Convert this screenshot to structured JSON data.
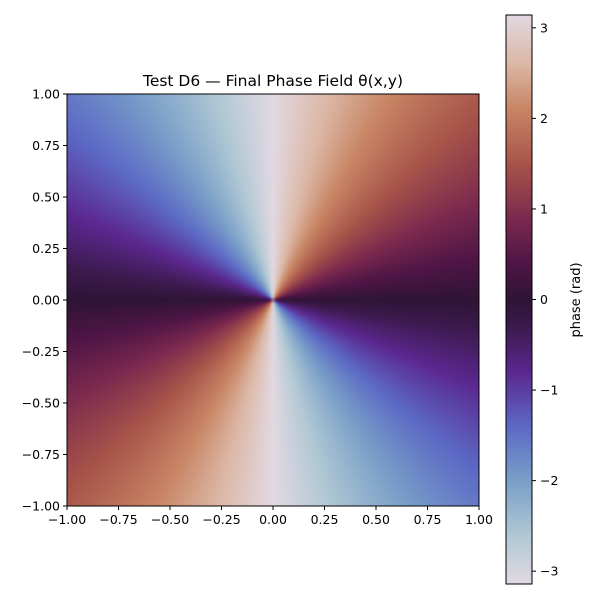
{
  "chart_data": {
    "type": "heatmap",
    "title": "Test D6 — Final Phase Field θ(x,y)",
    "xlabel": "",
    "ylabel": "",
    "xlim": [
      -1.0,
      1.0
    ],
    "ylim": [
      -1.0,
      1.0
    ],
    "x_ticks": [
      -1.0,
      -0.75,
      -0.5,
      -0.25,
      0.0,
      0.25,
      0.5,
      0.75,
      1.0
    ],
    "y_ticks": [
      -1.0,
      -0.75,
      -0.5,
      -0.25,
      0.0,
      0.25,
      0.5,
      0.75,
      1.0
    ],
    "x_tick_labels": [
      "−1.00",
      "−0.75",
      "−0.50",
      "−0.25",
      "0.00",
      "0.25",
      "0.50",
      "0.75",
      "1.00"
    ],
    "y_tick_labels": [
      "−1.00",
      "−0.75",
      "−0.50",
      "−0.25",
      "0.00",
      "0.25",
      "0.50",
      "0.75",
      "1.00"
    ],
    "field": {
      "description": "phase field of a charge-2 vortex at the origin",
      "expression": "theta = wrap(2 * atan2(y, x))",
      "vortex_center": [
        0.0,
        0.0
      ],
      "winding_number": 2,
      "range": [
        -3.14159,
        3.14159
      ]
    },
    "colorbar": {
      "label": "phase (rad)",
      "range": [
        -3.14159,
        3.14159
      ],
      "ticks": [
        -3,
        -2,
        -1,
        0,
        1,
        2,
        3
      ],
      "tick_labels": [
        "−3",
        "−2",
        "−1",
        "0",
        "1",
        "2",
        "3"
      ],
      "colormap": "twilight_shifted",
      "colormap_stops": [
        {
          "value": -3.14159,
          "color": "#e2d9e2"
        },
        {
          "value": -2.6,
          "color": "#b0c8d4"
        },
        {
          "value": -2.0,
          "color": "#7a9fc8"
        },
        {
          "value": -1.4,
          "color": "#5c69c5"
        },
        {
          "value": -0.8,
          "color": "#5b2890"
        },
        {
          "value": -0.3,
          "color": "#3d1a4e"
        },
        {
          "value": 0.0,
          "color": "#2f1436"
        },
        {
          "value": 0.4,
          "color": "#4f1546"
        },
        {
          "value": 0.9,
          "color": "#7c2a4e"
        },
        {
          "value": 1.5,
          "color": "#a8544a"
        },
        {
          "value": 2.1,
          "color": "#c88564"
        },
        {
          "value": 2.6,
          "color": "#dcb7a5"
        },
        {
          "value": 3.14159,
          "color": "#e2d9e2"
        }
      ]
    },
    "grid": false
  }
}
